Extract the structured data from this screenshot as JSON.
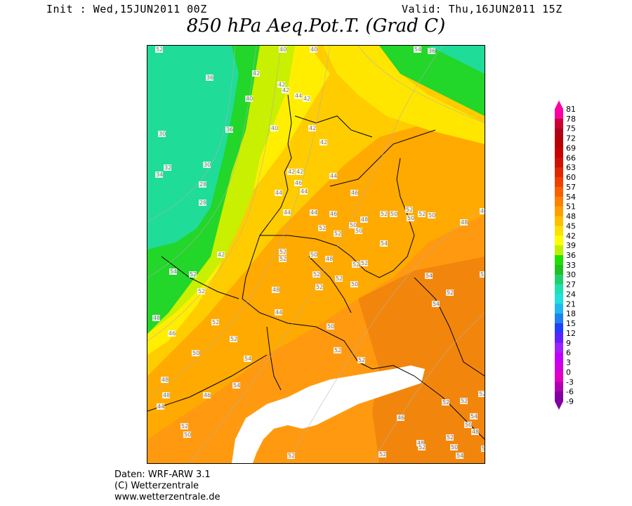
{
  "header": {
    "init": "Init : Wed,15JUN2011 00Z",
    "valid": "Valid: Thu,16JUN2011 15Z",
    "title": "850 hPa Aeq.Pot.T. (Grad C)"
  },
  "footer": {
    "line1": "Daten: WRF-ARW 3.1",
    "line2": "(C) Wetterzentrale",
    "line3": "www.wetterzentrale.de"
  },
  "colors": {
    "teal": "#1fd99a",
    "green": "#1ed51e",
    "yellow_green": "#b8f000",
    "yellow": "#ffff00",
    "gold": "#ffcc00",
    "orange_light": "#ffa800",
    "orange": "#ff9000",
    "orange_dark": "#f07a10",
    "snow": "#ffffff"
  },
  "colorbar": {
    "labels": [
      "81",
      "78",
      "75",
      "72",
      "69",
      "66",
      "63",
      "60",
      "57",
      "54",
      "51",
      "48",
      "45",
      "42",
      "39",
      "36",
      "33",
      "30",
      "27",
      "24",
      "21",
      "18",
      "15",
      "12",
      "9",
      "6",
      "3",
      "0",
      "-3",
      "-6",
      "-9"
    ],
    "colors": [
      "#ff00a0",
      "#cc0033",
      "#b00015",
      "#b80000",
      "#c80000",
      "#d01000",
      "#e02800",
      "#f04000",
      "#f86000",
      "#ff8000",
      "#ffa000",
      "#ffc000",
      "#ffe000",
      "#ffff00",
      "#c0f000",
      "#20e000",
      "#20c020",
      "#20d070",
      "#20e0b0",
      "#20e0e0",
      "#20b8f0",
      "#2080f0",
      "#2040ff",
      "#6020ff",
      "#a020ff",
      "#c000ff",
      "#d000e0",
      "#e000c0",
      "#b000b0",
      "#8000a0"
    ]
  },
  "contour_labels": [
    "34",
    "38",
    "36",
    "30",
    "32",
    "34",
    "30",
    "28",
    "28",
    "36",
    "36",
    "40",
    "42",
    "42",
    "42",
    "44",
    "42",
    "40",
    "40",
    "40",
    "42",
    "42",
    "44",
    "42",
    "44",
    "44",
    "44",
    "46",
    "46",
    "48",
    "50",
    "52",
    "52",
    "50",
    "52",
    "50",
    "52",
    "52",
    "52",
    "52",
    "50",
    "48",
    "52",
    "52",
    "54",
    "52",
    "52",
    "50",
    "52",
    "50",
    "52",
    "52",
    "50",
    "48",
    "46",
    "52",
    "50",
    "54",
    "52",
    "54",
    "54",
    "52",
    "52",
    "42",
    "44",
    "42",
    "46",
    "48",
    "44",
    "48",
    "46",
    "52",
    "52",
    "54",
    "54",
    "52",
    "50",
    "48",
    "44",
    "48",
    "46",
    "50",
    "52",
    "52",
    "54",
    "52",
    "50",
    "54",
    "50",
    "48",
    "50",
    "48",
    "52",
    "52",
    "52",
    "46",
    "52",
    "52",
    "54"
  ]
}
